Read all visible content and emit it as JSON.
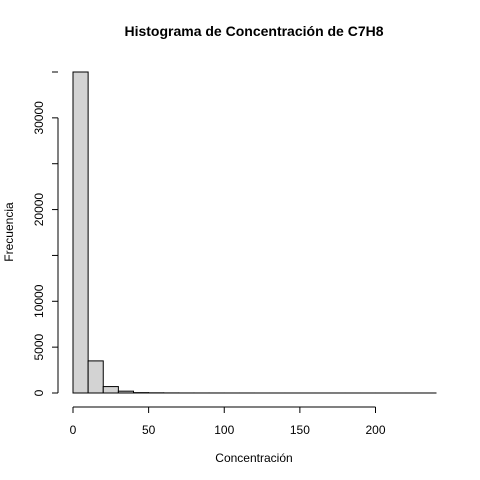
{
  "chart_data": {
    "type": "bar",
    "title": "Histograma de Concentración de C7H8",
    "xlabel": "Concentración",
    "ylabel": "Frecuencia",
    "bin_edges": [
      0,
      10,
      20,
      30,
      40,
      50,
      60,
      70,
      80,
      90,
      100,
      110,
      120,
      130,
      140,
      150,
      160,
      170,
      180,
      190,
      200,
      210,
      220,
      230,
      240
    ],
    "values": [
      35000,
      3500,
      700,
      200,
      40,
      20,
      10,
      5,
      4,
      3,
      2,
      2,
      1,
      1,
      1,
      1,
      1,
      1,
      1,
      1,
      1,
      1,
      1,
      1
    ],
    "xlim": [
      0,
      240
    ],
    "ylim": [
      0,
      35000
    ],
    "x_ticks": [
      "0",
      "50",
      "100",
      "150",
      "200"
    ],
    "y_ticks": [
      "0",
      "5000",
      "10000",
      "20000",
      "30000"
    ],
    "bar_fill": "#d3d3d3",
    "bar_stroke": "#000000"
  }
}
